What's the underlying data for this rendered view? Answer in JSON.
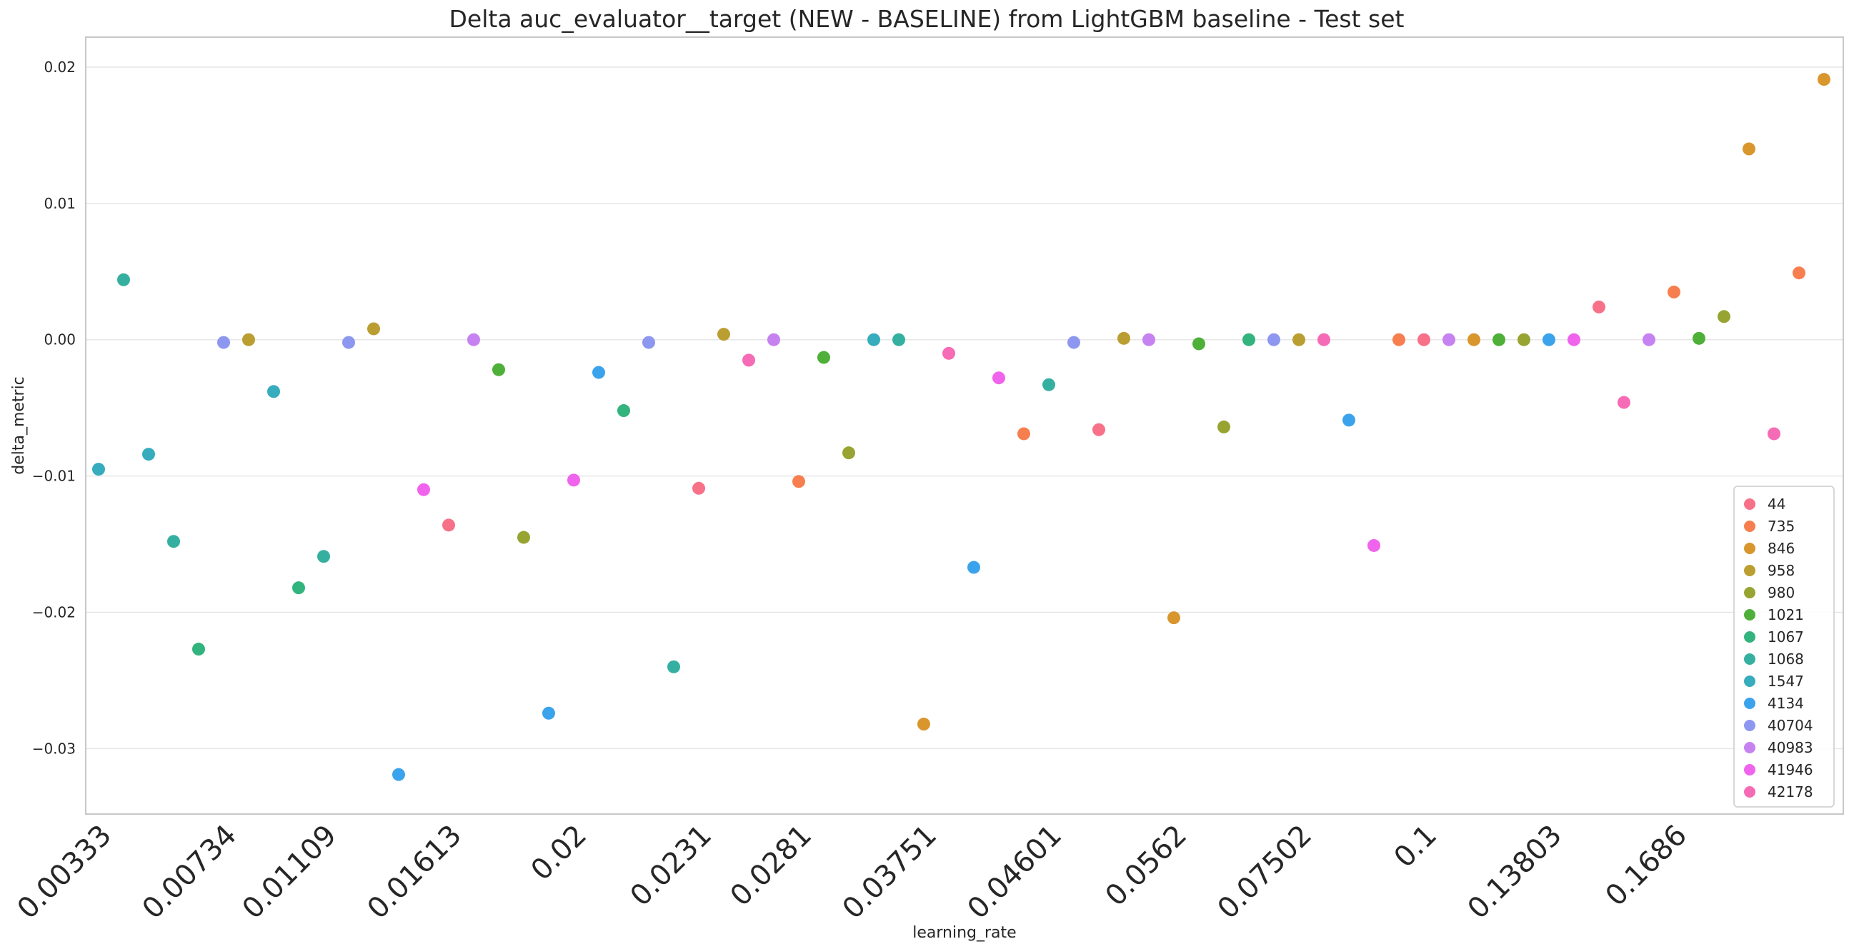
{
  "chart_data": {
    "type": "scatter",
    "title": "Delta auc_evaluator__target (NEW - BASELINE) from LightGBM baseline - Test set",
    "xlabel": "learning_rate",
    "ylabel": "delta_metric",
    "ylim": [
      -0.0348,
      0.0222
    ],
    "yticks": [
      {
        "value": 0.02,
        "label": "0.02"
      },
      {
        "value": 0.01,
        "label": "0.01"
      },
      {
        "value": 0.0,
        "label": "0.00"
      },
      {
        "value": -0.01,
        "label": "−0.01"
      },
      {
        "value": -0.02,
        "label": "−0.02"
      },
      {
        "value": -0.03,
        "label": "−0.03"
      }
    ],
    "x_categories": [
      "0.00333",
      "0.00734",
      "0.01109",
      "0.01613",
      "0.02",
      "0.0231",
      "0.0281",
      "0.03751",
      "0.04601",
      "0.0562",
      "0.07502",
      "0.1",
      "0.13803",
      "0.1686"
    ],
    "grid": "horizontal",
    "legend_position": "bottom-right",
    "series": [
      {
        "name": "44",
        "color": "#f77189"
      },
      {
        "name": "735",
        "color": "#f77f4f"
      },
      {
        "name": "846",
        "color": "#d8962d"
      },
      {
        "name": "958",
        "color": "#bb9e31"
      },
      {
        "name": "980",
        "color": "#97a431"
      },
      {
        "name": "1021",
        "color": "#4eb038"
      },
      {
        "name": "1067",
        "color": "#33b37e"
      },
      {
        "name": "1068",
        "color": "#35b0a0"
      },
      {
        "name": "1547",
        "color": "#36acbd"
      },
      {
        "name": "4134",
        "color": "#3ba3ec"
      },
      {
        "name": "40704",
        "color": "#8e97f0"
      },
      {
        "name": "40983",
        "color": "#c582f0"
      },
      {
        "name": "41946",
        "color": "#f064ed"
      },
      {
        "name": "42178",
        "color": "#f66bb5"
      }
    ],
    "points": [
      {
        "x": "0.00333",
        "series": "1547",
        "y": -0.0095
      },
      {
        "x": "0.00333",
        "series": "1068",
        "y": 0.0044
      },
      {
        "x": "0.00333",
        "series": "1547",
        "y": -0.0084
      },
      {
        "x": "0.00333",
        "series": "1068",
        "y": -0.0148
      },
      {
        "x": "0.00333",
        "series": "1067",
        "y": -0.0227
      },
      {
        "x": "0.00734",
        "series": "40704",
        "y": -0.0002
      },
      {
        "x": "0.00734",
        "series": "958",
        "y": 0.0
      },
      {
        "x": "0.00734",
        "series": "1547",
        "y": -0.0038
      },
      {
        "x": "0.00734",
        "series": "1067",
        "y": -0.0182
      },
      {
        "x": "0.01109",
        "series": "1068",
        "y": -0.0159
      },
      {
        "x": "0.01109",
        "series": "40704",
        "y": -0.0002
      },
      {
        "x": "0.01109",
        "series": "958",
        "y": 0.0008
      },
      {
        "x": "0.01109",
        "series": "4134",
        "y": -0.0319
      },
      {
        "x": "0.01109",
        "series": "41946",
        "y": -0.011
      },
      {
        "x": "0.01613",
        "series": "44",
        "y": -0.0136
      },
      {
        "x": "0.01613",
        "series": "40983",
        "y": 0.0
      },
      {
        "x": "0.01613",
        "series": "1021",
        "y": -0.0022
      },
      {
        "x": "0.01613",
        "series": "980",
        "y": -0.0145
      },
      {
        "x": "0.01613",
        "series": "4134",
        "y": -0.0274
      },
      {
        "x": "0.02",
        "series": "41946",
        "y": -0.0103
      },
      {
        "x": "0.02",
        "series": "4134",
        "y": -0.0024
      },
      {
        "x": "0.02",
        "series": "1067",
        "y": -0.0052
      },
      {
        "x": "0.02",
        "series": "40704",
        "y": -0.0002
      },
      {
        "x": "0.02",
        "series": "1068",
        "y": -0.024
      },
      {
        "x": "0.0231",
        "series": "44",
        "y": -0.0109
      },
      {
        "x": "0.0231",
        "series": "958",
        "y": 0.0004
      },
      {
        "x": "0.0231",
        "series": "42178",
        "y": -0.0015
      },
      {
        "x": "0.0231",
        "series": "40983",
        "y": 0.0
      },
      {
        "x": "0.0281",
        "series": "735",
        "y": -0.0104
      },
      {
        "x": "0.0281",
        "series": "1021",
        "y": -0.0013
      },
      {
        "x": "0.0281",
        "series": "980",
        "y": -0.0083
      },
      {
        "x": "0.0281",
        "series": "1547",
        "y": 0.0
      },
      {
        "x": "0.0281",
        "series": "1068",
        "y": 0.0
      },
      {
        "x": "0.03751",
        "series": "846",
        "y": -0.0282
      },
      {
        "x": "0.03751",
        "series": "42178",
        "y": -0.001
      },
      {
        "x": "0.03751",
        "series": "4134",
        "y": -0.0167
      },
      {
        "x": "0.03751",
        "series": "41946",
        "y": -0.0028
      },
      {
        "x": "0.03751",
        "series": "735",
        "y": -0.0069
      },
      {
        "x": "0.04601",
        "series": "1068",
        "y": -0.0033
      },
      {
        "x": "0.04601",
        "series": "40704",
        "y": -0.0002
      },
      {
        "x": "0.04601",
        "series": "44",
        "y": -0.0066
      },
      {
        "x": "0.04601",
        "series": "958",
        "y": 0.0001
      },
      {
        "x": "0.04601",
        "series": "40983",
        "y": 0.0
      },
      {
        "x": "0.0562",
        "series": "846",
        "y": -0.0204
      },
      {
        "x": "0.0562",
        "series": "1021",
        "y": -0.0003
      },
      {
        "x": "0.0562",
        "series": "980",
        "y": -0.0064
      },
      {
        "x": "0.0562",
        "series": "1067",
        "y": 0.0
      },
      {
        "x": "0.0562",
        "series": "40704",
        "y": 0.0
      },
      {
        "x": "0.07502",
        "series": "958",
        "y": 0.0
      },
      {
        "x": "0.07502",
        "series": "42178",
        "y": 0.0
      },
      {
        "x": "0.07502",
        "series": "4134",
        "y": -0.0059
      },
      {
        "x": "0.07502",
        "series": "41946",
        "y": -0.0151
      },
      {
        "x": "0.07502",
        "series": "735",
        "y": 0.0
      },
      {
        "x": "0.1",
        "series": "44",
        "y": 0.0
      },
      {
        "x": "0.1",
        "series": "40983",
        "y": 0.0
      },
      {
        "x": "0.1",
        "series": "846",
        "y": 0.0
      },
      {
        "x": "0.1",
        "series": "1021",
        "y": 0.0
      },
      {
        "x": "0.1",
        "series": "980",
        "y": 0.0
      },
      {
        "x": "0.13803",
        "series": "4134",
        "y": 0.0
      },
      {
        "x": "0.13803",
        "series": "41946",
        "y": 0.0
      },
      {
        "x": "0.13803",
        "series": "44",
        "y": 0.0024
      },
      {
        "x": "0.13803",
        "series": "42178",
        "y": -0.0046
      },
      {
        "x": "0.13803",
        "series": "40983",
        "y": 0.0
      },
      {
        "x": "0.1686",
        "series": "735",
        "y": 0.0035
      },
      {
        "x": "0.1686",
        "series": "1021",
        "y": 0.0001
      },
      {
        "x": "0.1686",
        "series": "980",
        "y": 0.0017
      },
      {
        "x": "0.1686",
        "series": "846",
        "y": 0.014
      },
      {
        "x": "0.1686",
        "series": "42178",
        "y": -0.0069
      },
      {
        "x": "0.1686",
        "series": "735",
        "y": 0.0049
      },
      {
        "x": "0.1686",
        "series": "846",
        "y": 0.0191
      }
    ]
  }
}
